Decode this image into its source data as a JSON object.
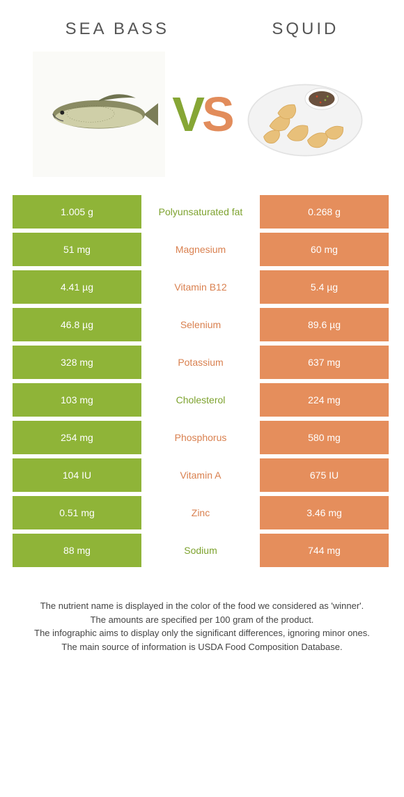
{
  "header": {
    "left_title": "Sea bass",
    "right_title": "Squid",
    "vs_v": "V",
    "vs_s": "S"
  },
  "colors": {
    "left_bg": "#8fb438",
    "right_bg": "#e58e5c",
    "left_text": "#7da22e",
    "right_text": "#d9804f"
  },
  "rows": [
    {
      "left": "1.005 g",
      "label": "Polyunsaturated fat",
      "right": "0.268 g",
      "winner": "left"
    },
    {
      "left": "51 mg",
      "label": "Magnesium",
      "right": "60 mg",
      "winner": "right"
    },
    {
      "left": "4.41 µg",
      "label": "Vitamin B12",
      "right": "5.4 µg",
      "winner": "right"
    },
    {
      "left": "46.8 µg",
      "label": "Selenium",
      "right": "89.6 µg",
      "winner": "right"
    },
    {
      "left": "328 mg",
      "label": "Potassium",
      "right": "637 mg",
      "winner": "right"
    },
    {
      "left": "103 mg",
      "label": "Cholesterol",
      "right": "224 mg",
      "winner": "left"
    },
    {
      "left": "254 mg",
      "label": "Phosphorus",
      "right": "580 mg",
      "winner": "right"
    },
    {
      "left": "104 IU",
      "label": "Vitamin A",
      "right": "675 IU",
      "winner": "right"
    },
    {
      "left": "0.51 mg",
      "label": "Zinc",
      "right": "3.46 mg",
      "winner": "right"
    },
    {
      "left": "88 mg",
      "label": "Sodium",
      "right": "744 mg",
      "winner": "left"
    }
  ],
  "footer": {
    "line1": "The nutrient name is displayed in the color of the food we considered as 'winner'.",
    "line2": "The amounts are specified per 100 gram of the product.",
    "line3": "The infographic aims to display only the significant differences, ignoring minor ones.",
    "line4": "The main source of information is USDA Food Composition Database."
  }
}
